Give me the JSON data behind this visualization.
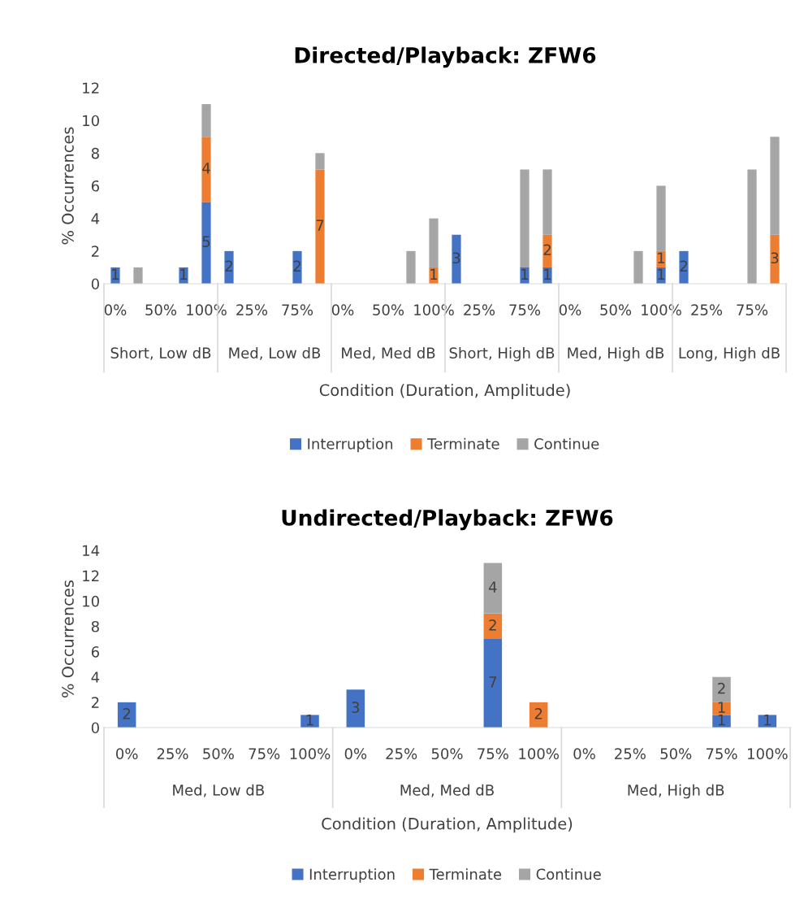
{
  "chart_data": [
    {
      "type": "bar",
      "stacked": true,
      "title": "Directed/Playback: ZFW6",
      "xlabel": "Condition (Duration, Amplitude)",
      "ylabel": "% Occurrences",
      "categories": [
        "0%",
        null,
        "50%",
        null,
        "100%",
        null,
        "25%",
        null,
        "75%",
        null,
        "0%",
        null,
        "50%",
        null,
        "100%",
        null,
        "25%",
        null,
        "75%",
        null,
        "0%",
        null,
        "50%",
        null,
        "100%",
        null,
        "25%",
        null,
        "75%",
        null
      ],
      "annotations": [
        "Short, Low dB",
        "Med, Low dB",
        "Med, Med dB",
        "Short, High dB",
        "Med, High dB",
        "Long, High dB"
      ],
      "series": [
        {
          "name": "Interruption",
          "color": "#4472c4",
          "values": [
            1,
            null,
            null,
            1,
            5,
            2,
            null,
            null,
            2,
            null,
            null,
            null,
            null,
            null,
            null,
            3,
            null,
            null,
            1,
            1,
            null,
            null,
            null,
            null,
            1,
            2,
            null,
            null,
            null,
            null
          ],
          "value_labels": [
            "1",
            null,
            null,
            "1",
            "5",
            "2",
            null,
            null,
            "2",
            null,
            null,
            null,
            null,
            null,
            null,
            "3",
            null,
            null,
            "1",
            "1",
            null,
            null,
            null,
            null,
            "1",
            "2",
            null,
            null,
            null,
            null
          ]
        },
        {
          "name": "Terminate",
          "color": "#ed7d31",
          "values": [
            null,
            null,
            null,
            null,
            4,
            null,
            null,
            null,
            null,
            7,
            null,
            null,
            null,
            null,
            1,
            null,
            null,
            null,
            null,
            2,
            null,
            null,
            null,
            null,
            1,
            null,
            null,
            null,
            null,
            3
          ],
          "value_labels": [
            null,
            null,
            null,
            null,
            "4",
            null,
            null,
            null,
            null,
            "7",
            null,
            null,
            null,
            null,
            "1",
            null,
            null,
            null,
            null,
            "2",
            null,
            null,
            null,
            null,
            "1",
            null,
            null,
            null,
            null,
            "3"
          ]
        },
        {
          "name": "Continue",
          "color": "#a5a5a5",
          "values": [
            null,
            1,
            null,
            null,
            2,
            null,
            null,
            null,
            null,
            1,
            null,
            null,
            null,
            2,
            3,
            null,
            null,
            null,
            6,
            4,
            null,
            null,
            null,
            2,
            4,
            null,
            null,
            null,
            7,
            6
          ]
        }
      ],
      "ylim": [
        0,
        12
      ],
      "yticks": [
        0,
        2,
        4,
        6,
        8,
        10,
        12
      ],
      "grid": false,
      "legend": "bottom"
    },
    {
      "type": "bar",
      "stacked": true,
      "title": "Undirected/Playback: ZFW6",
      "xlabel": "Condition (Duration, Amplitude)",
      "ylabel": "% Occurrences",
      "categories": [
        "0%",
        "25%",
        "50%",
        "75%",
        "100%",
        "0%",
        "25%",
        "50%",
        "75%",
        "100%",
        "0%",
        "25%",
        "50%",
        "75%",
        "100%"
      ],
      "annotations": [
        "Med, Low dB",
        "Med, Med dB",
        "Med, High dB"
      ],
      "series": [
        {
          "name": "Interruption",
          "color": "#4472c4",
          "values": [
            2,
            null,
            null,
            null,
            1,
            3,
            null,
            null,
            7,
            null,
            null,
            null,
            null,
            1,
            1
          ]
        },
        {
          "name": "Terminate",
          "color": "#ed7d31",
          "values": [
            null,
            null,
            null,
            null,
            null,
            null,
            null,
            null,
            2,
            2,
            null,
            null,
            null,
            1,
            null
          ]
        },
        {
          "name": "Continue",
          "color": "#a5a5a5",
          "values": [
            null,
            null,
            null,
            null,
            null,
            null,
            null,
            null,
            4,
            null,
            null,
            null,
            null,
            2,
            null
          ]
        }
      ],
      "data_labels": true,
      "ylim": [
        0,
        14
      ],
      "yticks": [
        0,
        2,
        4,
        6,
        8,
        10,
        12,
        14
      ],
      "grid": false,
      "legend": "bottom"
    }
  ]
}
